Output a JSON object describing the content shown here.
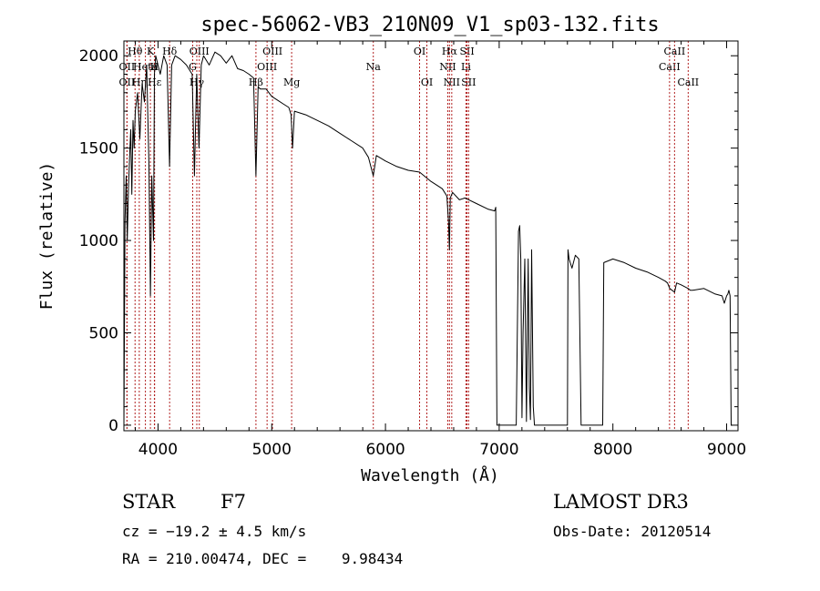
{
  "chart_data": {
    "type": "line",
    "title": "spec-56062-VB3_210N09_V1_sp03-132.fits",
    "xlabel": "Wavelength (Å)",
    "ylabel": "Flux (relative)",
    "xlim": [
      3700,
      9100
    ],
    "ylim": [
      -30,
      2080
    ],
    "xticks": [
      4000,
      5000,
      6000,
      7000,
      8000,
      9000
    ],
    "yticks": [
      0,
      500,
      1000,
      1500,
      2000
    ],
    "spectrum": {
      "name": "flux",
      "x": [
        3700,
        3710,
        3720,
        3730,
        3740,
        3750,
        3760,
        3770,
        3780,
        3790,
        3800,
        3820,
        3840,
        3860,
        3880,
        3900,
        3920,
        3933,
        3945,
        3960,
        3968,
        3980,
        4000,
        4020,
        4050,
        4080,
        4101,
        4120,
        4150,
        4200,
        4250,
        4300,
        4320,
        4340,
        4360,
        4380,
        4400,
        4450,
        4500,
        4550,
        4600,
        4650,
        4700,
        4750,
        4800,
        4840,
        4861,
        4880,
        4900,
        4950,
        5000,
        5050,
        5100,
        5150,
        5170,
        5183,
        5200,
        5300,
        5400,
        5500,
        5600,
        5700,
        5800,
        5850,
        5893,
        5920,
        6000,
        6100,
        6200,
        6300,
        6400,
        6450,
        6500,
        6540,
        6555,
        6563,
        6570,
        6590,
        6650,
        6700,
        6800,
        6900,
        6960,
        6970,
        6980,
        7000,
        7150,
        7170,
        7180,
        7190,
        7200,
        7210,
        7225,
        7240,
        7255,
        7265,
        7275,
        7285,
        7300,
        7310,
        7320,
        7500,
        7600,
        7605,
        7615,
        7640,
        7670,
        7700,
        7720,
        7730,
        7900,
        7910,
        7920,
        8000,
        8100,
        8200,
        8300,
        8400,
        8460,
        8480,
        8500,
        8542,
        8560,
        8600,
        8662,
        8680,
        8700,
        8800,
        8900,
        8960,
        8980,
        9000,
        9010,
        9020,
        9030,
        9040,
        9050
      ],
      "values": [
        0,
        1100,
        1350,
        1000,
        1280,
        1450,
        1600,
        1250,
        1650,
        1500,
        1700,
        1800,
        1550,
        1850,
        1750,
        1950,
        1400,
        700,
        1350,
        1000,
        1900,
        2000,
        1950,
        1900,
        2000,
        1950,
        1400,
        1950,
        2000,
        1980,
        1950,
        1900,
        1350,
        1900,
        1500,
        1950,
        2000,
        1950,
        2020,
        2000,
        1960,
        2000,
        1930,
        1920,
        1900,
        1880,
        1350,
        1830,
        1820,
        1820,
        1780,
        1760,
        1740,
        1720,
        1680,
        1500,
        1700,
        1680,
        1650,
        1620,
        1580,
        1540,
        1500,
        1450,
        1350,
        1460,
        1430,
        1400,
        1380,
        1370,
        1320,
        1300,
        1280,
        1240,
        1100,
        950,
        1230,
        1260,
        1220,
        1230,
        1200,
        1170,
        1160,
        1180,
        0,
        0,
        0,
        1050,
        1080,
        900,
        40,
        500,
        900,
        20,
        900,
        200,
        30,
        950,
        100,
        0,
        0,
        0,
        0,
        950,
        900,
        850,
        920,
        900,
        0,
        0,
        0,
        0,
        880,
        900,
        880,
        850,
        830,
        800,
        780,
        770,
        740,
        720,
        770,
        760,
        740,
        730,
        730,
        740,
        710,
        700,
        660,
        700,
        710,
        730,
        700,
        0,
        0
      ]
    },
    "lines": [
      {
        "label": "Hθ",
        "wavelength": 3798,
        "row": 1
      },
      {
        "label": "OII",
        "wavelength": 3727,
        "row": 2
      },
      {
        "label": "OII",
        "wavelength": 3727,
        "row": 3
      },
      {
        "label": "Hη",
        "wavelength": 3835,
        "row": 3
      },
      {
        "label": "Heta",
        "wavelength": 3889,
        "row": 2
      },
      {
        "label": "K",
        "wavelength": 3933,
        "row": 1
      },
      {
        "label": "H",
        "wavelength": 3968,
        "row": 2
      },
      {
        "label": "Hε",
        "wavelength": 3970,
        "row": 3
      },
      {
        "label": "Hδ",
        "wavelength": 4102,
        "row": 1
      },
      {
        "label": "G",
        "wavelength": 4305,
        "row": 2
      },
      {
        "label": "OIII",
        "wavelength": 4363,
        "row": 1
      },
      {
        "label": "Hγ",
        "wavelength": 4341,
        "row": 3
      },
      {
        "label": "Hβ",
        "wavelength": 4861,
        "row": 3
      },
      {
        "label": "OIII",
        "wavelength": 4959,
        "row": 2
      },
      {
        "label": "OIII",
        "wavelength": 5007,
        "row": 1
      },
      {
        "label": "Mg",
        "wavelength": 5175,
        "row": 3
      },
      {
        "label": "Na",
        "wavelength": 5893,
        "row": 2
      },
      {
        "label": "OI",
        "wavelength": 6300,
        "row": 1
      },
      {
        "label": "OI",
        "wavelength": 6364,
        "row": 3
      },
      {
        "label": "NII",
        "wavelength": 6548,
        "row": 2
      },
      {
        "label": "Hα",
        "wavelength": 6563,
        "row": 1
      },
      {
        "label": "NII",
        "wavelength": 6583,
        "row": 3
      },
      {
        "label": "SII",
        "wavelength": 6717,
        "row": 1
      },
      {
        "label": "SII",
        "wavelength": 6731,
        "row": 3
      },
      {
        "label": "Li",
        "wavelength": 6708,
        "row": 2
      },
      {
        "label": "CaII",
        "wavelength": 8498,
        "row": 2
      },
      {
        "label": "CaII",
        "wavelength": 8542,
        "row": 1
      },
      {
        "label": "CaII",
        "wavelength": 8662,
        "row": 3
      }
    ]
  },
  "info": {
    "class": "STAR",
    "subclass": "F7",
    "survey": "LAMOST DR3",
    "redshift": "cz = −19.2 ± 4.5 km/s",
    "obs_date": "Obs-Date: 20120514",
    "coords": "RA = 210.00474, DEC =    9.98434"
  }
}
